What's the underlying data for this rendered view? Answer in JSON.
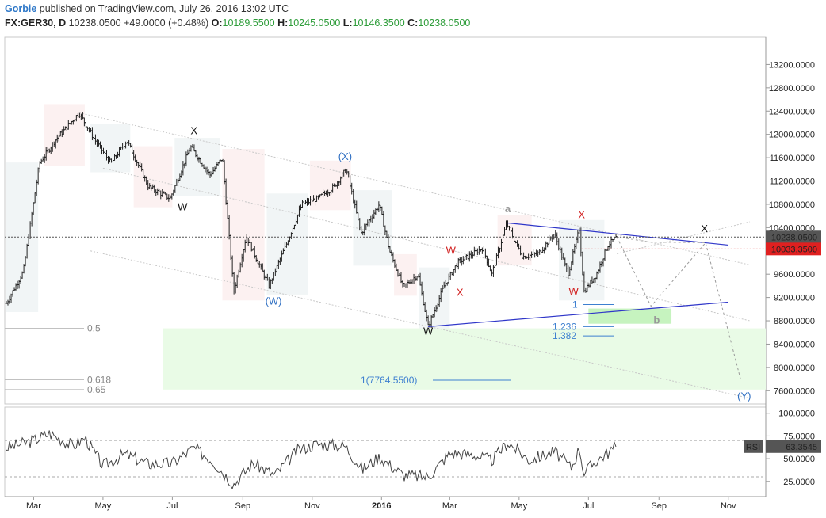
{
  "header": {
    "author": "Gorbie",
    "published": "published on TradingView.com, July 26, 2016 13:02 UTC",
    "symbol": "FX:GER30, D",
    "last": "10238.0500",
    "change": "+49.0000 (+0.48%)",
    "o_label": "O:",
    "o_val": "10189.5500",
    "h_label": "H:",
    "h_val": "10245.0500",
    "l_label": "L:",
    "l_val": "10146.3500",
    "c_label": "C:",
    "c_val": "10238.0500"
  },
  "colors": {
    "bars": "#222222",
    "trend": "#2f36c9",
    "wave_black": "#111111",
    "wave_blue": "#2f6fc2",
    "wave_red": "#d22222",
    "wave_gray": "#999999",
    "fib_text": "#888888",
    "fib_blue": "#3d7fd0",
    "target_zone": "#e9fbe6",
    "target_box": "#c6f3bf",
    "price_tag": "#555555",
    "red_tag": "#e02020"
  },
  "chart_data": [
    {
      "type": "candlestick",
      "title": "FX:GER30, D",
      "ylim": [
        7400,
        13600
      ],
      "x_ticks": [
        "Mar",
        "May",
        "Jul",
        "Sep",
        "Nov",
        "2016",
        "Mar",
        "May",
        "Jul",
        "Sep",
        "Nov"
      ],
      "y_ticks": [
        "13200.0000",
        "12800.0000",
        "12400.0000",
        "12000.0000",
        "11600.0000",
        "11200.0000",
        "10800.0000",
        "10400.0000",
        "10000.0000",
        "9600.0000",
        "9200.0000",
        "8800.0000",
        "8400.0000",
        "8000.0000",
        "7600.0000"
      ],
      "price_tag": "10238.0500",
      "red_tag": "10033.3500",
      "path": [
        [
          "2015-02-05",
          9100
        ],
        [
          "2015-02-20",
          9650
        ],
        [
          "2015-03-06",
          11500
        ],
        [
          "2015-03-20",
          11900
        ],
        [
          "2015-04-10",
          12370
        ],
        [
          "2015-04-24",
          11900
        ],
        [
          "2015-05-08",
          11500
        ],
        [
          "2015-05-22",
          11900
        ],
        [
          "2015-06-10",
          11100
        ],
        [
          "2015-06-29",
          10900
        ],
        [
          "2015-07-17",
          11790
        ],
        [
          "2015-08-03",
          11300
        ],
        [
          "2015-08-14",
          11600
        ],
        [
          "2015-08-24",
          9300
        ],
        [
          "2015-09-04",
          10250
        ],
        [
          "2015-09-24",
          9400
        ],
        [
          "2015-10-09",
          10100
        ],
        [
          "2015-10-23",
          10800
        ],
        [
          "2015-11-06",
          10900
        ],
        [
          "2015-11-20",
          11100
        ],
        [
          "2015-12-01",
          11400
        ],
        [
          "2015-12-14",
          10300
        ],
        [
          "2015-12-30",
          10800
        ],
        [
          "2016-01-08",
          10000
        ],
        [
          "2016-01-20",
          9380
        ],
        [
          "2016-02-02",
          9600
        ],
        [
          "2016-02-11",
          8700
        ],
        [
          "2016-02-25",
          9400
        ],
        [
          "2016-03-08",
          9800
        ],
        [
          "2016-03-17",
          9900
        ],
        [
          "2016-03-30",
          10050
        ],
        [
          "2016-04-07",
          9600
        ],
        [
          "2016-04-20",
          10470
        ],
        [
          "2016-05-04",
          9900
        ],
        [
          "2016-05-18",
          9950
        ],
        [
          "2016-06-01",
          10300
        ],
        [
          "2016-06-13",
          9600
        ],
        [
          "2016-06-23",
          10380
        ],
        [
          "2016-06-27",
          9300
        ],
        [
          "2016-07-08",
          9600
        ],
        [
          "2016-07-18",
          10100
        ],
        [
          "2016-07-26",
          10238
        ]
      ],
      "wave_labels": [
        {
          "text": "X",
          "date": "2015-07-20",
          "price": 12000,
          "color": "black"
        },
        {
          "text": "W",
          "date": "2015-07-10",
          "price": 10700,
          "color": "black"
        },
        {
          "text": "(X)",
          "date": "2015-11-30",
          "price": 11560,
          "color": "blue"
        },
        {
          "text": "(W)",
          "date": "2015-09-28",
          "price": 9080,
          "color": "blue"
        },
        {
          "text": "W",
          "date": "2016-02-11",
          "price": 8560,
          "color": "black"
        },
        {
          "text": "W",
          "date": "2016-03-02",
          "price": 9950,
          "color": "red"
        },
        {
          "text": "X",
          "date": "2016-03-10",
          "price": 9230,
          "color": "red"
        },
        {
          "text": "a",
          "date": "2016-04-21",
          "price": 10660,
          "color": "gray"
        },
        {
          "text": "X",
          "date": "2016-06-25",
          "price": 10560,
          "color": "red"
        },
        {
          "text": "W",
          "date": "2016-06-18",
          "price": 9240,
          "color": "red"
        },
        {
          "text": "b",
          "date": "2016-08-30",
          "price": 8750,
          "color": "gray"
        },
        {
          "text": "X",
          "date": "2016-10-11",
          "price": 10320,
          "color": "black"
        },
        {
          "text": "(Y)",
          "date": "2016-11-15",
          "price": 7450,
          "color": "blue"
        }
      ],
      "fib_levels": [
        {
          "text": "0.5",
          "price": 8670
        },
        {
          "text": "0.618",
          "price": 7790
        },
        {
          "text": "0.65",
          "price": 7620
        }
      ],
      "fib_blue": [
        {
          "text": "1",
          "price": 9080
        },
        {
          "text": "1.236",
          "price": 8700
        },
        {
          "text": "1.382",
          "price": 8540
        },
        {
          "text": "1(7764.5500)",
          "price": 7780
        }
      ],
      "projection": [
        [
          "2016-07-26",
          10238
        ],
        [
          "2016-08-25",
          9050
        ],
        [
          "2016-10-12",
          10140
        ],
        [
          "2016-11-12",
          7780
        ]
      ]
    },
    {
      "type": "line",
      "title": "RSI",
      "ylim": [
        10,
        105
      ],
      "y_ticks": [
        "100.0000",
        "75.0000",
        "50.0000",
        "25.0000"
      ],
      "value_label": "63.3545",
      "bands": [
        70,
        30
      ],
      "series": [
        {
          "name": "RSI",
          "values": [
            [
              "2015-02-05",
              62
            ],
            [
              "2015-03-01",
              70
            ],
            [
              "2015-03-15",
              78
            ],
            [
              "2015-04-05",
              64
            ],
            [
              "2015-04-15",
              73
            ],
            [
              "2015-05-01",
              42
            ],
            [
              "2015-05-20",
              55
            ],
            [
              "2015-06-10",
              44
            ],
            [
              "2015-07-01",
              45
            ],
            [
              "2015-07-20",
              62
            ],
            [
              "2015-08-05",
              48
            ],
            [
              "2015-08-24",
              22
            ],
            [
              "2015-09-10",
              45
            ],
            [
              "2015-09-29",
              32
            ],
            [
              "2015-10-20",
              60
            ],
            [
              "2015-11-05",
              66
            ],
            [
              "2015-11-30",
              64
            ],
            [
              "2015-12-15",
              38
            ],
            [
              "2015-12-30",
              52
            ],
            [
              "2016-01-20",
              32
            ],
            [
              "2016-02-11",
              30
            ],
            [
              "2016-03-01",
              56
            ],
            [
              "2016-03-20",
              55
            ],
            [
              "2016-04-07",
              48
            ],
            [
              "2016-04-21",
              68
            ],
            [
              "2016-05-10",
              48
            ],
            [
              "2016-06-01",
              58
            ],
            [
              "2016-06-16",
              40
            ],
            [
              "2016-06-23",
              62
            ],
            [
              "2016-06-27",
              34
            ],
            [
              "2016-07-08",
              48
            ],
            [
              "2016-07-26",
              63.35
            ]
          ]
        }
      ]
    }
  ]
}
